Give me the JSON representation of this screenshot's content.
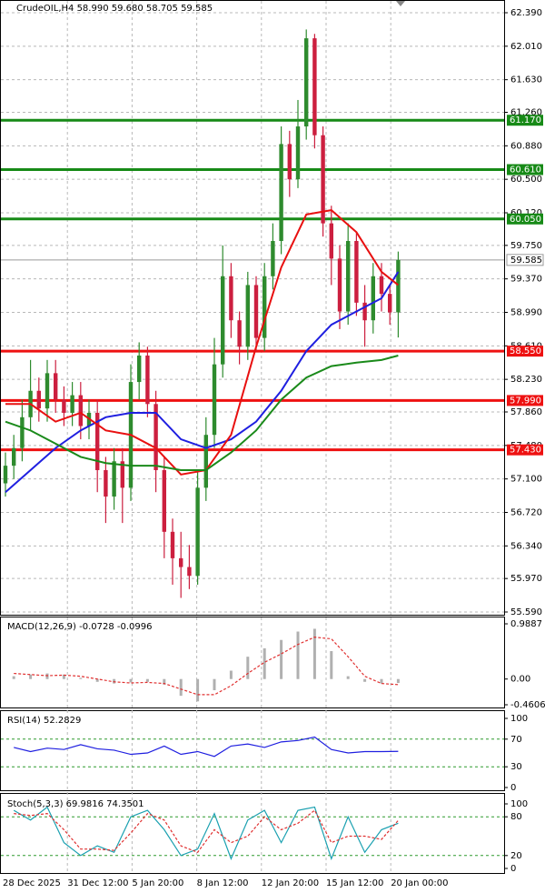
{
  "chart_data": {
    "type": "candlestick",
    "title": "CrudeOIL,H4  58.990 59.680 58.705 59.585",
    "x_labels": [
      "28 Dec 2025",
      "31 Dec 12:00",
      "5 Jan 20:00",
      "8 Jan 12:00",
      "12 Jan 20:00",
      "15 Jan 12:00",
      "20 Jan 00:00"
    ],
    "ylim": [
      55.59,
      62.39
    ],
    "yticks": [
      {
        "value": 62.39,
        "label": "62.390"
      },
      {
        "value": 62.01,
        "label": "62.010"
      },
      {
        "value": 61.63,
        "label": "61.630"
      },
      {
        "value": 61.26,
        "label": "61.260"
      },
      {
        "value": 60.88,
        "label": "60.880"
      },
      {
        "value": 60.5,
        "label": "60.500"
      },
      {
        "value": 60.12,
        "label": "60.120"
      },
      {
        "value": 59.75,
        "label": "59.750"
      },
      {
        "value": 59.37,
        "label": "59.370"
      },
      {
        "value": 58.99,
        "label": "58.990"
      },
      {
        "value": 58.61,
        "label": "58.610"
      },
      {
        "value": 58.23,
        "label": "58.230"
      },
      {
        "value": 57.86,
        "label": "57.860"
      },
      {
        "value": 57.48,
        "label": "57.480"
      },
      {
        "value": 57.1,
        "label": "57.100"
      },
      {
        "value": 56.72,
        "label": "56.720"
      },
      {
        "value": 56.34,
        "label": "56.340"
      },
      {
        "value": 55.97,
        "label": "55.970"
      },
      {
        "value": 55.59,
        "label": "55.590"
      }
    ],
    "up_color": "#2e8b2e",
    "down_color": "#cc1f3f",
    "candles": {
      "open": [
        57.05,
        57.25,
        57.45,
        57.8,
        58.1,
        57.9,
        58.3,
        58.0,
        57.85,
        58.05,
        57.7,
        57.85,
        57.2,
        56.9,
        57.3,
        57.0,
        58.2,
        58.5,
        57.95,
        57.2,
        56.5,
        56.2,
        56.1,
        56.0,
        57.0,
        57.6,
        58.4,
        59.4,
        58.9,
        58.6,
        59.3,
        58.7,
        59.4,
        59.8,
        60.9,
        60.5,
        61.1,
        62.1,
        61.0,
        60.0,
        59.6,
        59.0,
        59.8,
        59.1,
        58.9,
        59.4,
        59.2,
        58.99
      ],
      "high": [
        57.4,
        57.6,
        58.0,
        58.45,
        58.25,
        58.45,
        58.45,
        58.15,
        58.2,
        58.2,
        58.0,
        58.0,
        57.35,
        57.45,
        57.45,
        58.4,
        58.65,
        58.6,
        58.1,
        57.35,
        56.65,
        56.5,
        56.35,
        57.2,
        57.8,
        58.7,
        59.75,
        59.55,
        59.0,
        59.45,
        59.4,
        59.55,
        60.0,
        61.1,
        61.05,
        61.4,
        62.2,
        62.15,
        61.1,
        60.2,
        59.75,
        60.0,
        59.9,
        59.3,
        59.55,
        59.55,
        59.3,
        59.68
      ],
      "low": [
        56.9,
        57.1,
        57.3,
        57.65,
        57.75,
        57.75,
        57.85,
        57.7,
        57.7,
        57.55,
        57.55,
        56.95,
        56.6,
        56.75,
        56.6,
        56.85,
        58.0,
        57.8,
        56.95,
        56.2,
        55.9,
        55.75,
        55.85,
        55.9,
        56.85,
        57.45,
        58.25,
        58.7,
        58.4,
        58.45,
        58.55,
        58.55,
        59.25,
        59.65,
        60.3,
        60.4,
        60.95,
        60.85,
        59.85,
        59.3,
        58.8,
        58.85,
        58.95,
        58.6,
        58.75,
        59.0,
        58.85,
        58.705
      ],
      "close": [
        57.25,
        57.45,
        57.8,
        58.1,
        57.9,
        58.3,
        58.0,
        57.85,
        58.05,
        57.7,
        57.85,
        57.2,
        56.9,
        57.3,
        57.0,
        58.2,
        58.5,
        57.95,
        57.2,
        56.5,
        56.2,
        56.1,
        56.0,
        57.0,
        57.6,
        58.4,
        59.4,
        58.9,
        58.6,
        59.3,
        58.7,
        59.4,
        59.8,
        60.9,
        60.5,
        61.1,
        62.1,
        61.0,
        60.0,
        59.6,
        59.0,
        59.8,
        59.1,
        58.9,
        59.4,
        59.2,
        58.99,
        59.585
      ]
    },
    "moving_averages": [
      {
        "color": "#1f1fe0",
        "x": [
          0,
          3,
          6,
          9,
          12,
          15,
          18,
          21,
          24,
          27,
          30,
          33,
          36,
          39,
          42,
          45,
          47
        ],
        "values": [
          56.95,
          57.2,
          57.45,
          57.65,
          57.8,
          57.85,
          57.85,
          57.55,
          57.45,
          57.55,
          57.75,
          58.1,
          58.55,
          58.85,
          59.0,
          59.15,
          59.45
        ]
      },
      {
        "color": "#e81010",
        "x": [
          0,
          3,
          6,
          9,
          12,
          15,
          18,
          21,
          24,
          27,
          30,
          33,
          36,
          39,
          42,
          45,
          47
        ],
        "values": [
          57.95,
          57.95,
          57.75,
          57.85,
          57.65,
          57.6,
          57.45,
          57.15,
          57.2,
          57.6,
          58.6,
          59.5,
          60.1,
          60.15,
          59.9,
          59.45,
          59.3
        ]
      },
      {
        "color": "#1a8a1a",
        "x": [
          0,
          3,
          6,
          9,
          12,
          15,
          18,
          21,
          24,
          27,
          30,
          33,
          36,
          39,
          42,
          45,
          47
        ],
        "values": [
          57.75,
          57.65,
          57.5,
          57.35,
          57.28,
          57.25,
          57.25,
          57.2,
          57.2,
          57.4,
          57.65,
          58.0,
          58.25,
          58.38,
          58.42,
          58.45,
          58.5
        ]
      }
    ],
    "levels": [
      {
        "value": 61.17,
        "label": "61.170",
        "color": "#178a17"
      },
      {
        "value": 60.61,
        "label": "60.610",
        "color": "#178a17"
      },
      {
        "value": 60.05,
        "label": "60.050",
        "color": "#178a17"
      },
      {
        "value": 58.55,
        "label": "58.550",
        "color": "#ee1111"
      },
      {
        "value": 57.99,
        "label": "57.990",
        "color": "#ee1111"
      },
      {
        "value": 57.43,
        "label": "57.430",
        "color": "#ee1111"
      }
    ],
    "last_price": 59.585,
    "macd": {
      "title": "MACD(12,26,9) -0.0728 -0.0996",
      "ylim": [
        -0.4606,
        0.9887
      ],
      "yticks": [
        0.9887,
        {
          "value": 0,
          "label": "0.00"
        },
        -0.4606
      ],
      "x": [
        1,
        3,
        5,
        7,
        9,
        11,
        13,
        15,
        17,
        19,
        21,
        23,
        25,
        27,
        29,
        31,
        33,
        35,
        37,
        39,
        41,
        43,
        45,
        47
      ],
      "histogram": [
        0.05,
        0.08,
        0.1,
        0.08,
        0.02,
        -0.05,
        -0.08,
        -0.06,
        -0.05,
        -0.1,
        -0.3,
        -0.4,
        -0.2,
        0.15,
        0.4,
        0.55,
        0.7,
        0.85,
        0.9,
        0.5,
        0.05,
        -0.05,
        -0.08,
        -0.07
      ],
      "signal": [
        0.1,
        0.08,
        0.06,
        0.07,
        0.05,
        0.0,
        -0.05,
        -0.07,
        -0.06,
        -0.08,
        -0.18,
        -0.28,
        -0.28,
        -0.12,
        0.1,
        0.3,
        0.45,
        0.62,
        0.75,
        0.72,
        0.4,
        0.05,
        -0.08,
        -0.1
      ],
      "histogram_color": "#b0b0b0",
      "signal_color": "#e03030"
    },
    "rsi": {
      "title": "RSI(14) 52.2829",
      "ylim": [
        0,
        100
      ],
      "yticks": [
        100,
        70,
        30,
        0
      ],
      "x": [
        1,
        3,
        5,
        7,
        9,
        11,
        13,
        15,
        17,
        19,
        21,
        23,
        25,
        27,
        29,
        31,
        33,
        35,
        37,
        39,
        41,
        43,
        45,
        47
      ],
      "values": [
        58,
        52,
        57,
        55,
        62,
        56,
        54,
        48,
        50,
        60,
        48,
        52,
        45,
        60,
        63,
        58,
        66,
        68,
        73,
        55,
        50,
        52,
        52,
        52.2829
      ],
      "color": "#1f1fe0"
    },
    "stoch": {
      "title": "Stoch(5,3,3) 69.9816 74.3501",
      "ylim": [
        0,
        100
      ],
      "yticks": [
        100,
        80,
        20,
        0
      ],
      "x": [
        1,
        3,
        5,
        7,
        9,
        11,
        13,
        15,
        17,
        19,
        21,
        23,
        25,
        27,
        29,
        31,
        33,
        35,
        37,
        39,
        41,
        43,
        45,
        47
      ],
      "main": [
        90,
        75,
        95,
        40,
        20,
        35,
        25,
        80,
        90,
        60,
        20,
        30,
        85,
        15,
        75,
        90,
        40,
        90,
        95,
        15,
        80,
        25,
        60,
        69.9816
      ],
      "signal": [
        85,
        82,
        85,
        60,
        30,
        30,
        28,
        55,
        85,
        75,
        35,
        25,
        60,
        40,
        50,
        80,
        60,
        70,
        90,
        40,
        50,
        50,
        45,
        74.3501
      ],
      "main_color": "#1aa0b0",
      "signal_color": "#e03030"
    }
  }
}
